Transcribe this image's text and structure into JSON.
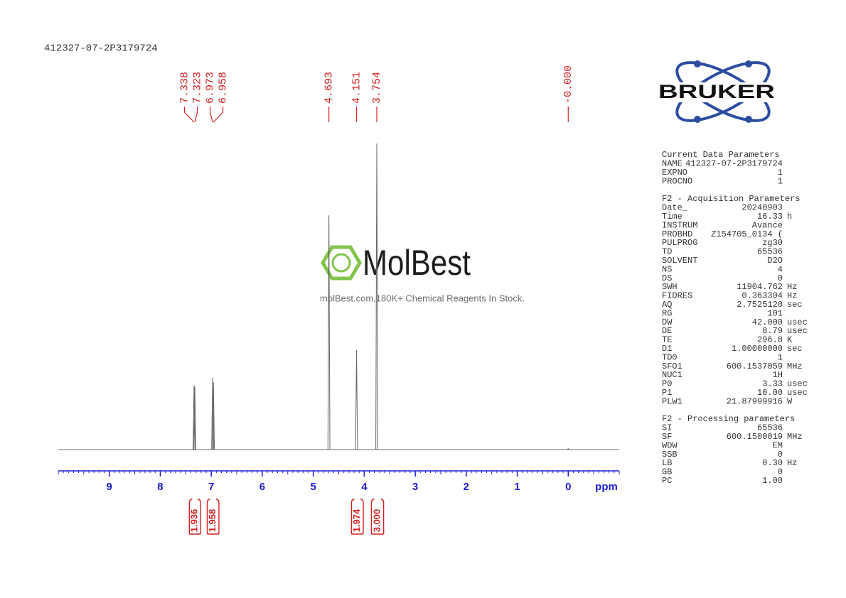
{
  "chart_data": {
    "type": "nmr",
    "title": "412327-07-2P3179724",
    "xlabel": "ppm",
    "xlim": [
      10,
      -1
    ],
    "xticks": [
      9,
      8,
      7,
      6,
      5,
      4,
      3,
      2,
      1,
      0
    ],
    "ylim": [
      0,
      100
    ],
    "axis_color": "#1c1cd0",
    "series": [
      {
        "color": "#666666",
        "x": [
          7.338,
          7.323,
          6.973,
          6.958,
          4.693,
          4.151,
          3.754,
          0
        ],
        "values": [
          21,
          20.5,
          23.5,
          22,
          76.5,
          32.5,
          100,
          0.3
        ]
      }
    ],
    "peak_labels": [
      "7.338",
      "7.323",
      "6.973",
      "6.958",
      "4.693",
      "4.151",
      "3.754",
      "-0.000"
    ],
    "peak_label_color": "#d42020",
    "integrals": {
      "color": "#d42020",
      "regions": [
        [
          7.43,
          7.21
        ],
        [
          7.08,
          6.85
        ],
        [
          4.25,
          4.02
        ],
        [
          3.86,
          3.62
        ]
      ],
      "values": [
        1.936,
        1.958,
        1.974,
        3
      ],
      "value_labels": [
        "1.936",
        "1.958",
        "1.974",
        "3.000"
      ]
    }
  },
  "logo": {
    "text": "BRUKER"
  },
  "watermark": {
    "brand": "MolBest",
    "tagline": "molBest.com,180K+ Chemical Reagents In Stock."
  },
  "parameters": [
    {
      "title": "Current Data Parameters",
      "rows": [
        [
          "NAME",
          "412327-07-2P3179724"
        ],
        [
          "EXPNO",
          "1"
        ],
        [
          "PROCNO",
          "1"
        ]
      ]
    },
    {
      "title": "F2 - Acquisition Parameters",
      "rows": [
        [
          "Date_",
          "20240903"
        ],
        [
          "Time",
          "16.33",
          "h"
        ],
        [
          "INSTRUM",
          "Avance"
        ],
        [
          "PROBHD",
          "Z154705_0134 ("
        ],
        [
          "PULPROG",
          "zg30"
        ],
        [
          "TD",
          "65536"
        ],
        [
          "SOLVENT",
          "D2O"
        ],
        [
          "NS",
          "4"
        ],
        [
          "DS",
          "0"
        ],
        [
          "SWH",
          "11904.762",
          "Hz"
        ],
        [
          "FIDRES",
          "0.363304",
          "Hz"
        ],
        [
          "AQ",
          "2.7525120",
          "sec"
        ],
        [
          "RG",
          "101"
        ],
        [
          "DW",
          "42.000",
          "usec"
        ],
        [
          "DE",
          "8.79",
          "usec"
        ],
        [
          "TE",
          "296.8",
          "K"
        ],
        [
          "D1",
          "1.00000000",
          "sec"
        ],
        [
          "TD0",
          "1"
        ],
        [
          "SFO1",
          "600.1537059",
          "MHz"
        ],
        [
          "NUC1",
          "1H"
        ],
        [
          "P0",
          "3.33",
          "usec"
        ],
        [
          "P1",
          "10.00",
          "usec"
        ],
        [
          "PLW1",
          "21.87999916",
          "W"
        ]
      ]
    },
    {
      "title": "F2 - Processing parameters",
      "rows": [
        [
          "SI",
          "65536"
        ],
        [
          "SF",
          "600.1500019",
          "MHz"
        ],
        [
          "WDW",
          "EM"
        ],
        [
          "SSB",
          "0"
        ],
        [
          "LB",
          "0.30",
          "Hz"
        ],
        [
          "GB",
          "0"
        ],
        [
          "PC",
          "1.00"
        ]
      ]
    }
  ]
}
